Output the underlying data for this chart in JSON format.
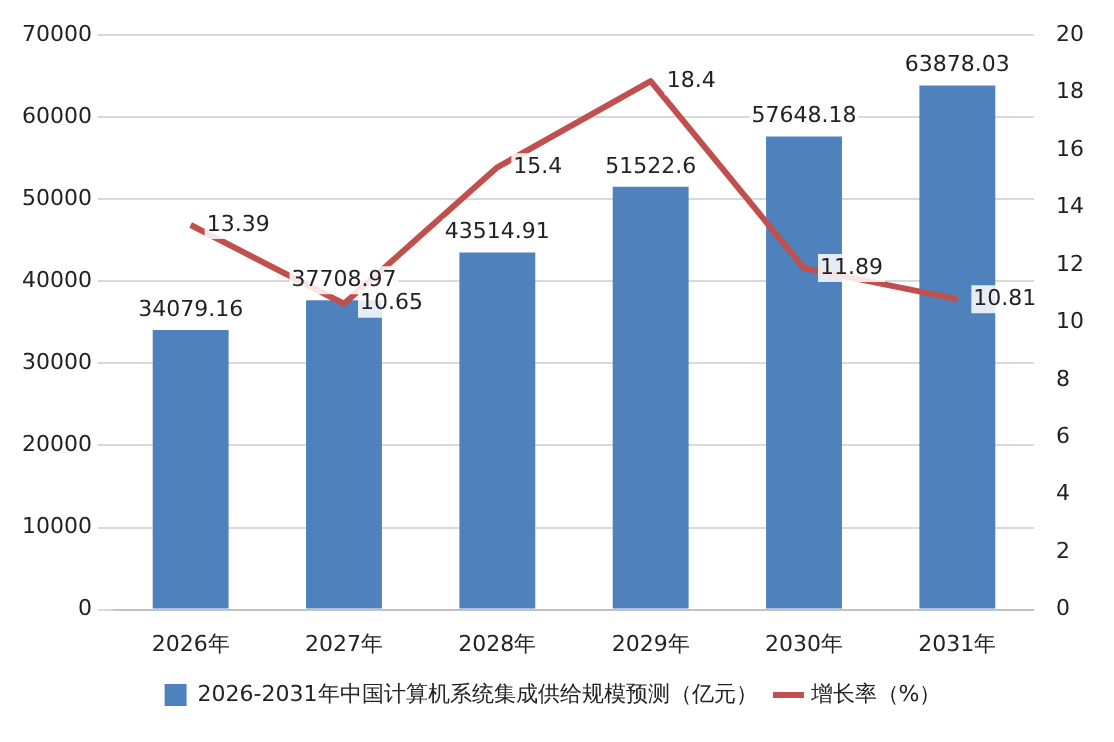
{
  "chart_data": {
    "type": "bar",
    "categories": [
      "2026年",
      "2027年",
      "2028年",
      "2029年",
      "2030年",
      "2031年"
    ],
    "series": [
      {
        "name": "2026-2031年中国计算机系统集成供给规模预测（亿元）",
        "color": "#4f81bd",
        "values": [
          34079.16,
          37708.97,
          43514.91,
          51522.6,
          57648.18,
          63878.03
        ]
      },
      {
        "name": "增长率（%）",
        "type": "line",
        "axis": "y2",
        "color": "#c0504d",
        "values": [
          13.39,
          10.65,
          15.4,
          18.4,
          11.89,
          10.81
        ]
      }
    ],
    "ylim": [
      0,
      70000
    ],
    "yticks": [
      0,
      10000,
      20000,
      30000,
      40000,
      50000,
      60000,
      70000
    ],
    "y2lim": [
      0,
      20
    ],
    "y2ticks": [
      0,
      2,
      4,
      6,
      8,
      10,
      12,
      14,
      16,
      18,
      20
    ],
    "grid": "y",
    "legend": "bottom",
    "data_labels": true,
    "marker": "none",
    "line_style": "solid"
  }
}
